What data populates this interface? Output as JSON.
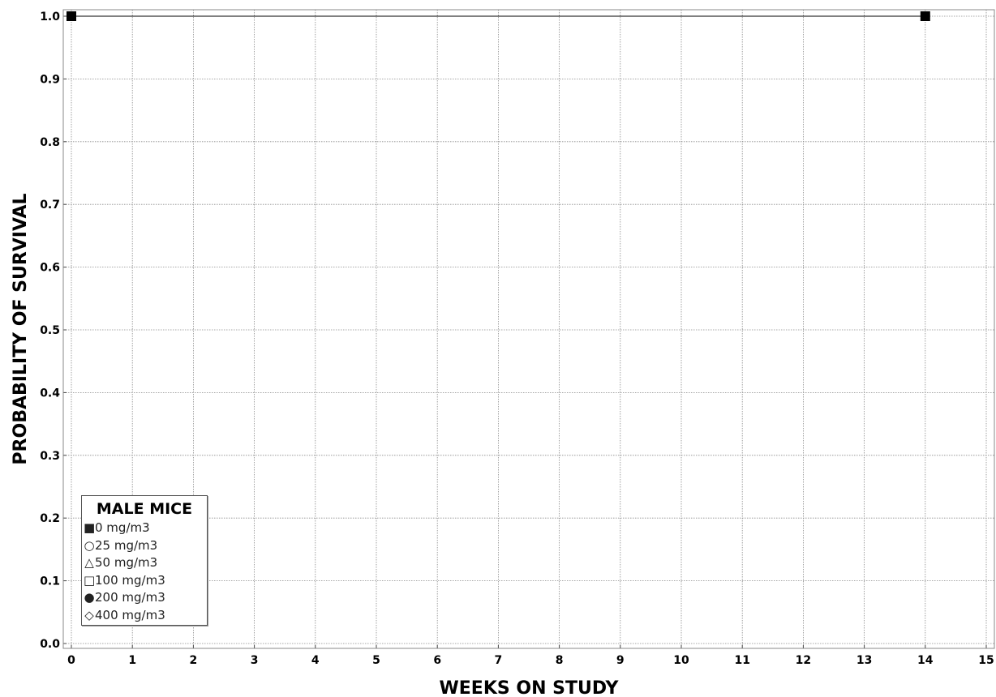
{
  "chart_data": {
    "type": "line",
    "xlabel": "WEEKS ON STUDY",
    "ylabel": "PROBABILITY OF SURVIVAL",
    "xlim": [
      0,
      15
    ],
    "ylim": [
      0.0,
      1.0
    ],
    "x_ticks": [
      "0",
      "1",
      "2",
      "3",
      "4",
      "5",
      "6",
      "7",
      "8",
      "9",
      "10",
      "11",
      "12",
      "13",
      "14",
      "15"
    ],
    "y_ticks": [
      "0.0",
      "0.1",
      "0.2",
      "0.3",
      "0.4",
      "0.5",
      "0.6",
      "0.7",
      "0.8",
      "0.9",
      "1.0"
    ],
    "grid": true,
    "legend_placement": "bottom-left",
    "series": [
      {
        "name": "0 mg/m3",
        "marker": "filled-square",
        "x": [
          0,
          14
        ],
        "y": [
          1.0,
          1.0
        ]
      }
    ]
  },
  "legend": {
    "title": "MALE MICE",
    "items": [
      {
        "symbol": "■",
        "label": "0 mg/m3"
      },
      {
        "symbol": "○",
        "label": "25 mg/m3"
      },
      {
        "symbol": "△",
        "label": "50 mg/m3"
      },
      {
        "symbol": "□",
        "label": "100 mg/m3"
      },
      {
        "symbol": "●",
        "label": "200 mg/m3"
      },
      {
        "symbol": "◇",
        "label": "400 mg/m3"
      }
    ]
  }
}
